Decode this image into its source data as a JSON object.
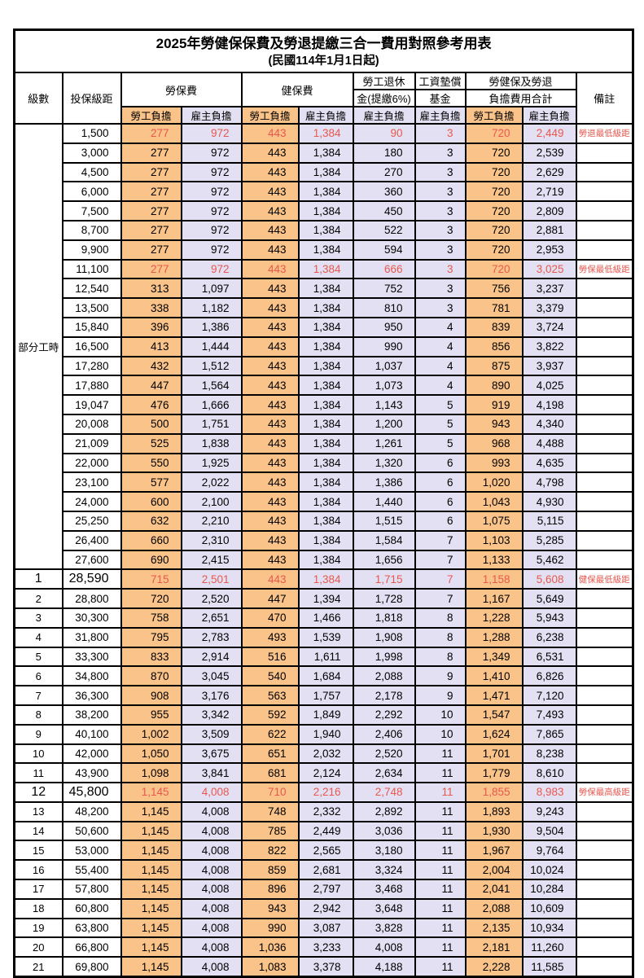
{
  "title": "2025年勞健保保費及勞退提繳三合一費用對照參考用表",
  "subtitle": "(民國114年1月1日起)",
  "columns": {
    "level": "級數",
    "bracket": "投保級距",
    "labor_insurance": "勞保費",
    "health_insurance": "健保費",
    "pension_line1": "勞工退休",
    "pension_line2": "金(提繳6%)",
    "wage_fund_line1": "工資墊償",
    "wage_fund_line2": "基金",
    "total_line1": "勞健保及勞退",
    "total_line2": "負擔費用合計",
    "remark": "備註"
  },
  "subheaders": {
    "employee": "勞工負擔",
    "employer": "雇主負擔"
  },
  "value_col_types": [
    "employee",
    "employer",
    "employee",
    "employer",
    "employer",
    "employer",
    "employee",
    "employer"
  ],
  "part_time_label": "部分工時",
  "part_time_rowspan": 23,
  "colors": {
    "employee_bg": "#F9C389",
    "employer_bg": "#E2E0F2",
    "highlight_text": "#E9584F"
  },
  "rows": [
    {
      "bracket": "1,500",
      "v": [
        "277",
        "972",
        "443",
        "1,384",
        "90",
        "3",
        "720",
        "2,449"
      ],
      "remark": "勞退最低級距",
      "hl": true
    },
    {
      "bracket": "3,000",
      "v": [
        "277",
        "972",
        "443",
        "1,384",
        "180",
        "3",
        "720",
        "2,539"
      ]
    },
    {
      "bracket": "4,500",
      "v": [
        "277",
        "972",
        "443",
        "1,384",
        "270",
        "3",
        "720",
        "2,629"
      ]
    },
    {
      "bracket": "6,000",
      "v": [
        "277",
        "972",
        "443",
        "1,384",
        "360",
        "3",
        "720",
        "2,719"
      ]
    },
    {
      "bracket": "7,500",
      "v": [
        "277",
        "972",
        "443",
        "1,384",
        "450",
        "3",
        "720",
        "2,809"
      ]
    },
    {
      "bracket": "8,700",
      "v": [
        "277",
        "972",
        "443",
        "1,384",
        "522",
        "3",
        "720",
        "2,881"
      ]
    },
    {
      "bracket": "9,900",
      "v": [
        "277",
        "972",
        "443",
        "1,384",
        "594",
        "3",
        "720",
        "2,953"
      ]
    },
    {
      "bracket": "11,100",
      "v": [
        "277",
        "972",
        "443",
        "1,384",
        "666",
        "3",
        "720",
        "3,025"
      ],
      "remark": "勞保最低級距",
      "hl": true
    },
    {
      "bracket": "12,540",
      "v": [
        "313",
        "1,097",
        "443",
        "1,384",
        "752",
        "3",
        "756",
        "3,237"
      ]
    },
    {
      "bracket": "13,500",
      "v": [
        "338",
        "1,182",
        "443",
        "1,384",
        "810",
        "3",
        "781",
        "3,379"
      ]
    },
    {
      "bracket": "15,840",
      "v": [
        "396",
        "1,386",
        "443",
        "1,384",
        "950",
        "4",
        "839",
        "3,724"
      ]
    },
    {
      "bracket": "16,500",
      "v": [
        "413",
        "1,444",
        "443",
        "1,384",
        "990",
        "4",
        "856",
        "3,822"
      ]
    },
    {
      "bracket": "17,280",
      "v": [
        "432",
        "1,512",
        "443",
        "1,384",
        "1,037",
        "4",
        "875",
        "3,937"
      ]
    },
    {
      "bracket": "17,880",
      "v": [
        "447",
        "1,564",
        "443",
        "1,384",
        "1,073",
        "4",
        "890",
        "4,025"
      ]
    },
    {
      "bracket": "19,047",
      "v": [
        "476",
        "1,666",
        "443",
        "1,384",
        "1,143",
        "5",
        "919",
        "4,198"
      ]
    },
    {
      "bracket": "20,008",
      "v": [
        "500",
        "1,751",
        "443",
        "1,384",
        "1,200",
        "5",
        "943",
        "4,340"
      ]
    },
    {
      "bracket": "21,009",
      "v": [
        "525",
        "1,838",
        "443",
        "1,384",
        "1,261",
        "5",
        "968",
        "4,488"
      ]
    },
    {
      "bracket": "22,000",
      "v": [
        "550",
        "1,925",
        "443",
        "1,384",
        "1,320",
        "6",
        "993",
        "4,635"
      ]
    },
    {
      "bracket": "23,100",
      "v": [
        "577",
        "2,022",
        "443",
        "1,384",
        "1,386",
        "6",
        "1,020",
        "4,798"
      ]
    },
    {
      "bracket": "24,000",
      "v": [
        "600",
        "2,100",
        "443",
        "1,384",
        "1,440",
        "6",
        "1,043",
        "4,930"
      ]
    },
    {
      "bracket": "25,250",
      "v": [
        "632",
        "2,210",
        "443",
        "1,384",
        "1,515",
        "6",
        "1,075",
        "5,115"
      ]
    },
    {
      "bracket": "26,400",
      "v": [
        "660",
        "2,310",
        "443",
        "1,384",
        "1,584",
        "7",
        "1,103",
        "5,285"
      ]
    },
    {
      "bracket": "27,600",
      "v": [
        "690",
        "2,415",
        "443",
        "1,384",
        "1,656",
        "7",
        "1,133",
        "5,462"
      ]
    },
    {
      "level": "1",
      "bracket": "28,590",
      "v": [
        "715",
        "2,501",
        "443",
        "1,384",
        "1,715",
        "7",
        "1,158",
        "5,608"
      ],
      "remark": "健保最低級距",
      "hl": true,
      "big": true
    },
    {
      "level": "2",
      "bracket": "28,800",
      "v": [
        "720",
        "2,520",
        "447",
        "1,394",
        "1,728",
        "7",
        "1,167",
        "5,649"
      ]
    },
    {
      "level": "3",
      "bracket": "30,300",
      "v": [
        "758",
        "2,651",
        "470",
        "1,466",
        "1,818",
        "8",
        "1,228",
        "5,943"
      ]
    },
    {
      "level": "4",
      "bracket": "31,800",
      "v": [
        "795",
        "2,783",
        "493",
        "1,539",
        "1,908",
        "8",
        "1,288",
        "6,238"
      ]
    },
    {
      "level": "5",
      "bracket": "33,300",
      "v": [
        "833",
        "2,914",
        "516",
        "1,611",
        "1,998",
        "8",
        "1,349",
        "6,531"
      ]
    },
    {
      "level": "6",
      "bracket": "34,800",
      "v": [
        "870",
        "3,045",
        "540",
        "1,684",
        "2,088",
        "9",
        "1,410",
        "6,826"
      ]
    },
    {
      "level": "7",
      "bracket": "36,300",
      "v": [
        "908",
        "3,176",
        "563",
        "1,757",
        "2,178",
        "9",
        "1,471",
        "7,120"
      ]
    },
    {
      "level": "8",
      "bracket": "38,200",
      "v": [
        "955",
        "3,342",
        "592",
        "1,849",
        "2,292",
        "10",
        "1,547",
        "7,493"
      ]
    },
    {
      "level": "9",
      "bracket": "40,100",
      "v": [
        "1,002",
        "3,509",
        "622",
        "1,940",
        "2,406",
        "10",
        "1,624",
        "7,865"
      ]
    },
    {
      "level": "10",
      "bracket": "42,000",
      "v": [
        "1,050",
        "3,675",
        "651",
        "2,032",
        "2,520",
        "11",
        "1,701",
        "8,238"
      ]
    },
    {
      "level": "11",
      "bracket": "43,900",
      "v": [
        "1,098",
        "3,841",
        "681",
        "2,124",
        "2,634",
        "11",
        "1,779",
        "8,610"
      ]
    },
    {
      "level": "12",
      "bracket": "45,800",
      "v": [
        "1,145",
        "4,008",
        "710",
        "2,216",
        "2,748",
        "11",
        "1,855",
        "8,983"
      ],
      "remark": "勞保最高級距",
      "hl": true,
      "big": true
    },
    {
      "level": "13",
      "bracket": "48,200",
      "v": [
        "1,145",
        "4,008",
        "748",
        "2,332",
        "2,892",
        "11",
        "1,893",
        "9,243"
      ]
    },
    {
      "level": "14",
      "bracket": "50,600",
      "v": [
        "1,145",
        "4,008",
        "785",
        "2,449",
        "3,036",
        "11",
        "1,930",
        "9,504"
      ]
    },
    {
      "level": "15",
      "bracket": "53,000",
      "v": [
        "1,145",
        "4,008",
        "822",
        "2,565",
        "3,180",
        "11",
        "1,967",
        "9,764"
      ]
    },
    {
      "level": "16",
      "bracket": "55,400",
      "v": [
        "1,145",
        "4,008",
        "859",
        "2,681",
        "3,324",
        "11",
        "2,004",
        "10,024"
      ]
    },
    {
      "level": "17",
      "bracket": "57,800",
      "v": [
        "1,145",
        "4,008",
        "896",
        "2,797",
        "3,468",
        "11",
        "2,041",
        "10,284"
      ]
    },
    {
      "level": "18",
      "bracket": "60,800",
      "v": [
        "1,145",
        "4,008",
        "943",
        "2,942",
        "3,648",
        "11",
        "2,088",
        "10,609"
      ]
    },
    {
      "level": "19",
      "bracket": "63,800",
      "v": [
        "1,145",
        "4,008",
        "990",
        "3,087",
        "3,828",
        "11",
        "2,135",
        "10,934"
      ]
    },
    {
      "level": "20",
      "bracket": "66,800",
      "v": [
        "1,145",
        "4,008",
        "1,036",
        "3,233",
        "4,008",
        "11",
        "2,181",
        "11,260"
      ]
    },
    {
      "level": "21",
      "bracket": "69,800",
      "v": [
        "1,145",
        "4,008",
        "1,083",
        "3,378",
        "4,188",
        "11",
        "2,228",
        "11,585"
      ]
    }
  ]
}
